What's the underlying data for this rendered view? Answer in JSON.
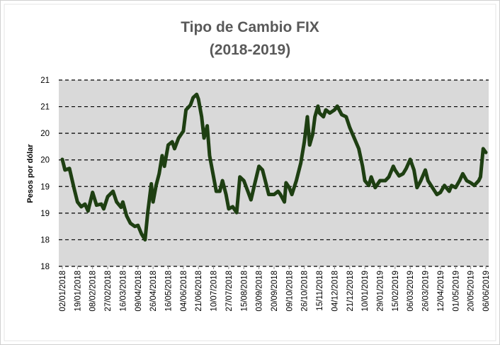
{
  "chart_data": {
    "type": "line",
    "title": "Tipo de Cambio FIX",
    "subtitle": "(2018-2019)",
    "y_label": "Pesos por dólar",
    "color": "#1e3f12",
    "grid": true,
    "ylim": [
      17.5,
      21.0
    ],
    "yticks": [
      {
        "value": 17.5,
        "label": "18"
      },
      18,
      {
        "value": 18.5,
        "label": "19"
      },
      19,
      {
        "value": 19.5,
        "label": "20"
      },
      20,
      {
        "value": 20.5,
        "label": "21"
      },
      21
    ],
    "xlim": [
      "02/01/2018",
      "06/06/2019"
    ],
    "xticks": [
      "02/01/2018",
      "19/01/2018",
      "08/02/2018",
      "27/02/2018",
      "16/03/2018",
      "09/04/2018",
      "26/04/2018",
      "16/05/2018",
      "04/06/2018",
      "21/06/2018",
      "10/07/2018",
      "27/07/2018",
      "15/08/2018",
      "03/09/2018",
      "20/09/2018",
      "09/10/2018",
      "26/10/2018",
      "15/11/2018",
      "04/12/2018",
      "21/12/2018",
      "10/01/2019",
      "29/01/2019",
      "15/02/2019",
      "06/03/2019",
      "26/03/2019",
      "12/04/2019",
      "01/05/2019",
      "20/05/2019",
      "06/06/2019"
    ],
    "x": [
      "02/01/2018",
      "05/01/2018",
      "10/01/2018",
      "15/01/2018",
      "19/01/2018",
      "24/01/2018",
      "29/01/2018",
      "02/02/2018",
      "08/02/2018",
      "13/02/2018",
      "19/02/2018",
      "22/02/2018",
      "27/02/2018",
      "05/03/2018",
      "09/03/2018",
      "14/03/2018",
      "16/03/2018",
      "22/03/2018",
      "28/03/2018",
      "04/04/2018",
      "09/04/2018",
      "13/04/2018",
      "17/04/2018",
      "20/04/2018",
      "24/04/2018",
      "26/04/2018",
      "30/04/2018",
      "04/05/2018",
      "08/05/2018",
      "11/05/2018",
      "16/05/2018",
      "21/05/2018",
      "24/05/2018",
      "29/05/2018",
      "04/06/2018",
      "07/06/2018",
      "12/06/2018",
      "15/06/2018",
      "19/06/2018",
      "21/06/2018",
      "25/06/2018",
      "28/06/2018",
      "02/07/2018",
      "05/07/2018",
      "10/07/2018",
      "13/07/2018",
      "17/07/2018",
      "20/07/2018",
      "24/07/2018",
      "27/07/2018",
      "01/08/2018",
      "06/08/2018",
      "10/08/2018",
      "15/08/2018",
      "20/08/2018",
      "24/08/2018",
      "29/08/2018",
      "03/09/2018",
      "07/09/2018",
      "11/09/2018",
      "14/09/2018",
      "20/09/2018",
      "25/09/2018",
      "28/09/2018",
      "03/10/2018",
      "05/10/2018",
      "09/10/2018",
      "12/10/2018",
      "17/10/2018",
      "22/10/2018",
      "26/10/2018",
      "30/10/2018",
      "02/11/2018",
      "06/11/2018",
      "09/11/2018",
      "13/11/2018",
      "15/11/2018",
      "20/11/2018",
      "23/11/2018",
      "28/11/2018",
      "04/12/2018",
      "07/12/2018",
      "12/12/2018",
      "17/12/2018",
      "21/12/2018",
      "27/12/2018",
      "02/01/2019",
      "07/01/2019",
      "10/01/2019",
      "15/01/2019",
      "18/01/2019",
      "23/01/2019",
      "29/01/2019",
      "04/02/2019",
      "08/02/2019",
      "13/02/2019",
      "15/02/2019",
      "20/02/2019",
      "25/02/2019",
      "01/03/2019",
      "06/03/2019",
      "11/03/2019",
      "15/03/2019",
      "20/03/2019",
      "26/03/2019",
      "29/03/2019",
      "03/04/2019",
      "08/04/2019",
      "12/04/2019",
      "17/04/2019",
      "23/04/2019",
      "26/04/2019",
      "01/05/2019",
      "06/05/2019",
      "10/05/2019",
      "15/05/2019",
      "20/05/2019",
      "24/05/2019",
      "29/05/2019",
      "31/05/2019",
      "03/06/2019",
      "06/06/2019"
    ],
    "values": [
      19.51,
      19.31,
      19.34,
      18.98,
      18.71,
      18.62,
      18.67,
      18.54,
      18.89,
      18.65,
      18.67,
      18.58,
      18.81,
      18.91,
      18.71,
      18.61,
      18.71,
      18.45,
      18.31,
      18.25,
      18.27,
      18.11,
      18.0,
      18.51,
      19.05,
      18.71,
      19.02,
      19.24,
      19.58,
      19.38,
      19.78,
      19.84,
      19.71,
      19.91,
      20.04,
      20.44,
      20.53,
      20.67,
      20.73,
      20.64,
      20.31,
      19.91,
      20.14,
      19.58,
      19.18,
      18.91,
      18.91,
      19.11,
      18.85,
      18.58,
      18.62,
      18.51,
      19.18,
      19.11,
      18.91,
      18.75,
      19.07,
      19.38,
      19.31,
      19.05,
      18.85,
      18.85,
      18.91,
      18.85,
      18.71,
      19.07,
      18.98,
      18.85,
      19.11,
      19.44,
      19.84,
      20.31,
      19.78,
      19.98,
      20.31,
      20.51,
      20.38,
      20.31,
      20.44,
      20.38,
      20.44,
      20.51,
      20.35,
      20.31,
      20.11,
      19.91,
      19.71,
      19.38,
      19.11,
      19.02,
      19.18,
      18.98,
      19.11,
      19.11,
      19.18,
      19.38,
      19.31,
      19.2,
      19.24,
      19.34,
      19.51,
      19.31,
      18.98,
      19.11,
      19.31,
      19.11,
      18.98,
      18.85,
      18.89,
      19.02,
      18.91,
      19.02,
      18.98,
      19.11,
      19.24,
      19.11,
      19.07,
      19.02,
      19.11,
      19.18,
      19.71,
      19.64
    ]
  }
}
